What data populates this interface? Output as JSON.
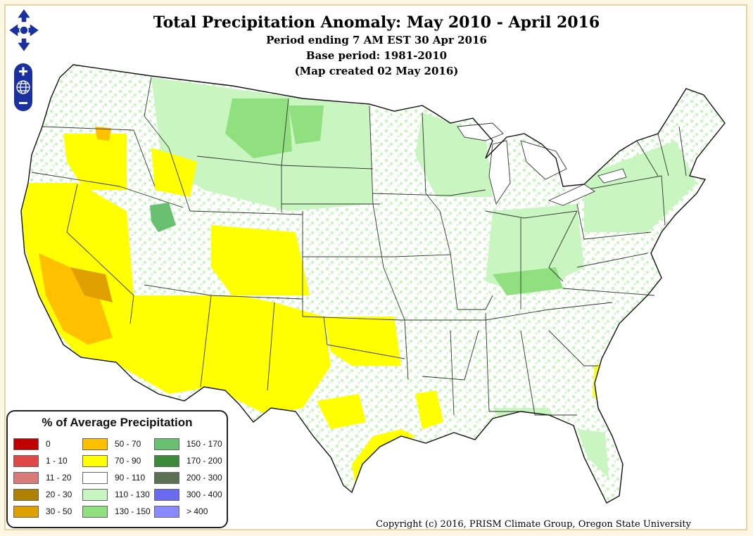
{
  "map": {
    "title": "Total Precipitation Anomaly: May 2010 - April 2016",
    "subtitle_1": "Period ending 7 AM EST 30 Apr 2016",
    "subtitle_2": "Base period: 1981-2010",
    "subtitle_3": "(Map created 02 May 2016)",
    "region": "Contiguous United States",
    "copyright": "Copyright (c) 2016, PRISM Climate Group, Oregon State University"
  },
  "controls": {
    "pan_icon": "pan-arrows-icon",
    "zoom_in_icon": "plus-icon",
    "globe_icon": "globe-icon",
    "zoom_out_icon": "minus-icon"
  },
  "legend": {
    "title": "% of Average Precipitation",
    "items": [
      {
        "label": "0",
        "color": "#c00000"
      },
      {
        "label": "1 - 10",
        "color": "#e04848"
      },
      {
        "label": "11 - 20",
        "color": "#d97a7a"
      },
      {
        "label": "20 - 30",
        "color": "#b08000"
      },
      {
        "label": "30 - 50",
        "color": "#e0a000"
      },
      {
        "label": "50 - 70",
        "color": "#ffc000"
      },
      {
        "label": "70 - 90",
        "color": "#ffff00"
      },
      {
        "label": "90 - 110",
        "color": "#ffffff"
      },
      {
        "label": "110 - 130",
        "color": "#c8f5c0"
      },
      {
        "label": "130 - 150",
        "color": "#90e080"
      },
      {
        "label": "150 - 170",
        "color": "#68c070"
      },
      {
        "label": "170 - 200",
        "color": "#3a8a3a"
      },
      {
        "label": "200 - 300",
        "color": "#5a7050"
      },
      {
        "label": "300 - 400",
        "color": "#6a6af0"
      },
      {
        "label": "> 400",
        "color": "#8888ff"
      }
    ]
  }
}
